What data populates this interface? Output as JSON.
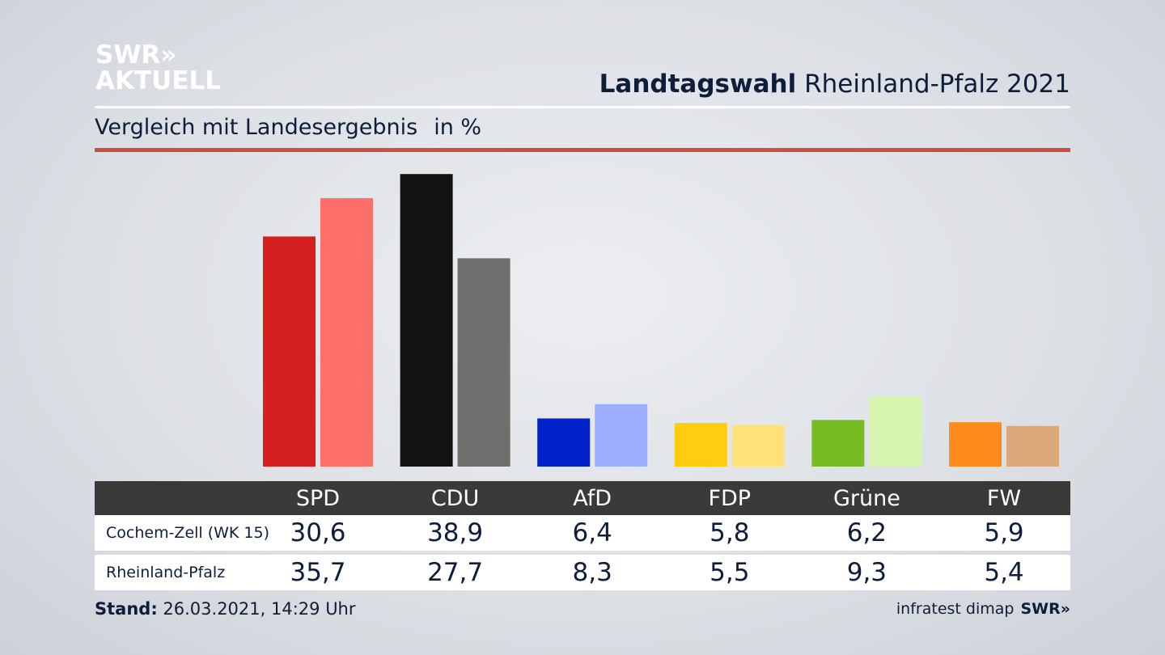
{
  "brand": {
    "logo_line1": "SWR»",
    "logo_line2": "AKTUELL",
    "footer_logo": "SWR»"
  },
  "header": {
    "title_bold": "Landtagswahl",
    "title_rest": "Rheinland-Pfalz 2021",
    "subtitle": "Vergleich mit Landesergebnis",
    "unit": "in %"
  },
  "chart_data": {
    "type": "bar",
    "categories": [
      "SPD",
      "CDU",
      "AfD",
      "FDP",
      "Grüne",
      "FW"
    ],
    "series": [
      {
        "name": "Cochem-Zell (WK 15)",
        "values": [
          30.6,
          38.9,
          6.4,
          5.8,
          6.2,
          5.9
        ],
        "colors": [
          "#d62020",
          "#121212",
          "#0022c8",
          "#ffcc10",
          "#76bc22",
          "#ff8c1a"
        ]
      },
      {
        "name": "Rheinland-Pfalz",
        "values": [
          35.7,
          27.7,
          8.3,
          5.5,
          9.3,
          5.4
        ],
        "colors": [
          "#ff6f6a",
          "#706f6d",
          "#9eaeff",
          "#ffe17a",
          "#d5f5b0",
          "#dca87a"
        ]
      }
    ],
    "value_labels": [
      [
        "30,6",
        "38,9",
        "6,4",
        "5,8",
        "6,2",
        "5,9"
      ],
      [
        "35,7",
        "27,7",
        "8,3",
        "5,5",
        "9,3",
        "5,4"
      ]
    ],
    "ylim": [
      0,
      40
    ],
    "grid": false,
    "legend": "table below chart"
  },
  "footer": {
    "stand_label": "Stand:",
    "stand_value": "26.03.2021, 14:29 Uhr",
    "source": "infratest dimap"
  }
}
